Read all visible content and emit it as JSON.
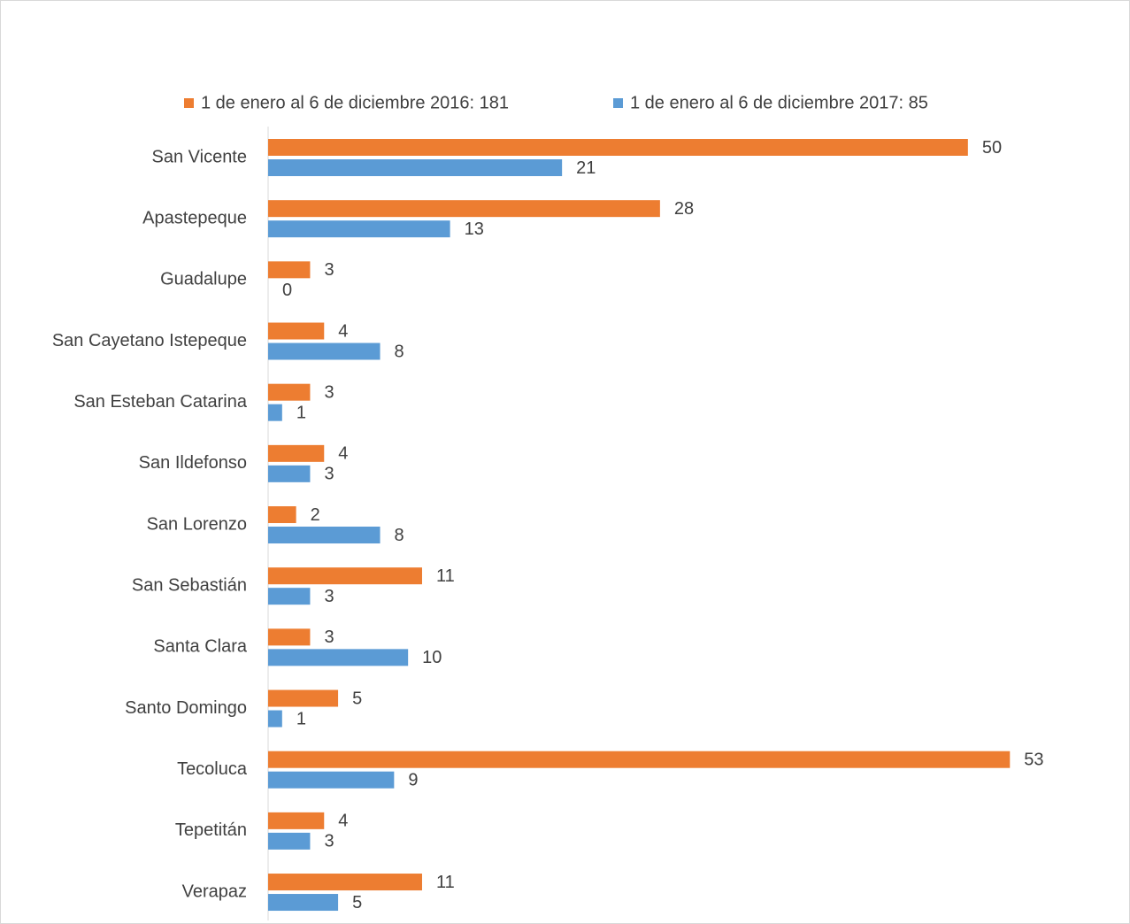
{
  "chart_data": {
    "type": "hbar",
    "categories": [
      "San Vicente",
      "Apastepeque",
      "Guadalupe",
      "San Cayetano Istepeque",
      "San Esteban Catarina",
      "San Ildefonso",
      "San Lorenzo",
      "San Sebastián",
      "Santa Clara",
      "Santo Domingo",
      "Tecoluca",
      "Tepetitán",
      "Verapaz"
    ],
    "series": [
      {
        "name": "1 de enero al 6 de diciembre 2016: 181",
        "color": "#ed7d31",
        "values": [
          50,
          28,
          3,
          4,
          3,
          4,
          2,
          11,
          3,
          5,
          53,
          4,
          11
        ]
      },
      {
        "name": "1 de enero al 6 de diciembre 2017: 85",
        "color": "#5b9bd5",
        "values": [
          21,
          13,
          0,
          8,
          1,
          3,
          8,
          3,
          10,
          1,
          9,
          3,
          5
        ]
      }
    ],
    "xlim": [
      0,
      60
    ]
  }
}
